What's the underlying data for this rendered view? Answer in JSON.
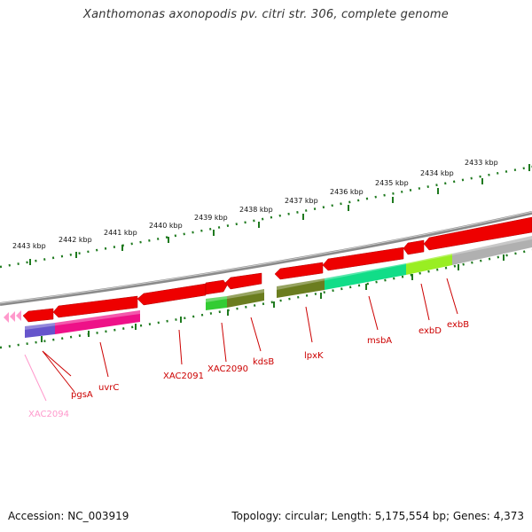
{
  "title": "Xanthomonas axonopodis pv. citri str. 306, complete genome",
  "accession_text": "Accession: NC_003919",
  "summary_text": "Topology: circular; Length: 5,175,554 bp; Genes: 4,373",
  "colors": {
    "backbone": "#8a8a8a",
    "forward_gene": "#ee0000",
    "ruler": "#1f7a1f",
    "label": "#cc0000",
    "faded_label": "#ff99cc"
  },
  "ruler_labels": [
    "2443 kbp",
    "2442 kbp",
    "2441 kbp",
    "2440 kbp",
    "2439 kbp",
    "2438 kbp",
    "2437 kbp",
    "2436 kbp",
    "2435 kbp",
    "2434 kbp",
    "2433 kbp"
  ],
  "gene_labels": [
    "XAC2094",
    "pgsA",
    "uvrC",
    "XAC2091",
    "XAC2090",
    "kdsB",
    "lpxK",
    "msbA",
    "exbD",
    "exbB"
  ]
}
